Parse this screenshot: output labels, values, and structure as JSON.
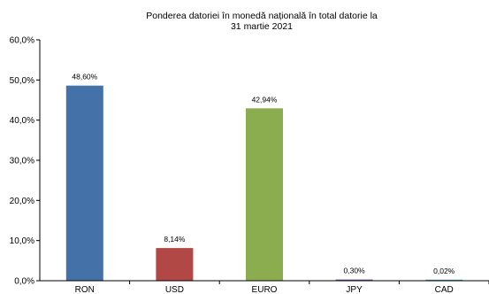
{
  "chart_data": {
    "type": "bar",
    "title_lines": [
      "Ponderea datoriei în monedă națională în total datorie la",
      "31 martie 2021"
    ],
    "categories": [
      "RON",
      "USD",
      "EURO",
      "JPY",
      "CAD"
    ],
    "values": [
      48.6,
      8.14,
      42.94,
      0.3,
      0.02
    ],
    "data_labels": [
      "48,60%",
      "8,14%",
      "42,94%",
      "0,30%",
      "0,02%"
    ],
    "bar_colors": [
      "#4472a8",
      "#b24846",
      "#8cad4f",
      "#75549a",
      "#4aa3b8"
    ],
    "y_ticks": [
      "0,0%",
      "10,0%",
      "20,0%",
      "30,0%",
      "40,0%",
      "50,0%",
      "60,0%"
    ],
    "ylim": [
      0,
      60
    ],
    "xlabel": "",
    "ylabel": "",
    "grid": false,
    "legend": "none"
  }
}
